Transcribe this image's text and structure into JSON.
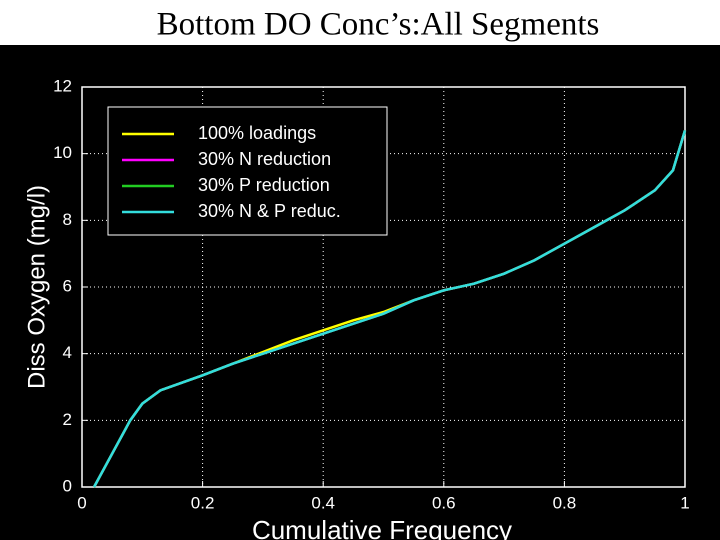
{
  "chart_data": {
    "type": "line",
    "title": "Bottom DO Conc’s:All Segments",
    "xlabel": "Cumulative Frequency",
    "ylabel": "Diss Oxygen (mg/l)",
    "x": [
      0.02,
      0.05,
      0.08,
      0.1,
      0.13,
      0.2,
      0.25,
      0.3,
      0.35,
      0.4,
      0.45,
      0.5,
      0.55,
      0.6,
      0.65,
      0.7,
      0.75,
      0.8,
      0.85,
      0.9,
      0.95,
      0.98,
      1.0
    ],
    "series": [
      {
        "name": "100% loadings",
        "color": "#ffff00",
        "values": [
          0,
          1,
          2,
          2.5,
          2.9,
          3.35,
          3.7,
          4.05,
          4.4,
          4.7,
          5.0,
          5.25,
          5.6,
          5.9,
          6.1,
          6.4,
          6.8,
          7.3,
          7.8,
          8.3,
          8.9,
          9.5,
          10.7
        ]
      },
      {
        "name": "30% N reduction",
        "color": "#ff00ff",
        "values": [
          0,
          1,
          2,
          2.5,
          2.9,
          3.35,
          3.7,
          4.0,
          4.3,
          4.6,
          4.9,
          5.2,
          5.6,
          5.9,
          6.1,
          6.4,
          6.8,
          7.3,
          7.8,
          8.3,
          8.9,
          9.5,
          10.7
        ]
      },
      {
        "name": "30% P reduction",
        "color": "#22cc22",
        "values": [
          0,
          1,
          2,
          2.5,
          2.9,
          3.35,
          3.7,
          4.0,
          4.3,
          4.6,
          4.9,
          5.2,
          5.6,
          5.9,
          6.1,
          6.4,
          6.8,
          7.3,
          7.8,
          8.3,
          8.9,
          9.5,
          10.7
        ]
      },
      {
        "name": "30% N & P reduc.",
        "color": "#33dddd",
        "values": [
          0,
          1,
          2,
          2.5,
          2.9,
          3.35,
          3.7,
          4.0,
          4.3,
          4.6,
          4.9,
          5.2,
          5.6,
          5.9,
          6.1,
          6.4,
          6.8,
          7.3,
          7.8,
          8.3,
          8.9,
          9.5,
          10.7
        ]
      }
    ],
    "xlim": [
      0,
      1
    ],
    "xticks": [
      0,
      0.2,
      0.4,
      0.6,
      0.8,
      1
    ],
    "ylim": [
      0,
      12
    ],
    "yticks": [
      0,
      2,
      4,
      6,
      8,
      10,
      12
    ],
    "grid": true,
    "legend": "upper left"
  }
}
